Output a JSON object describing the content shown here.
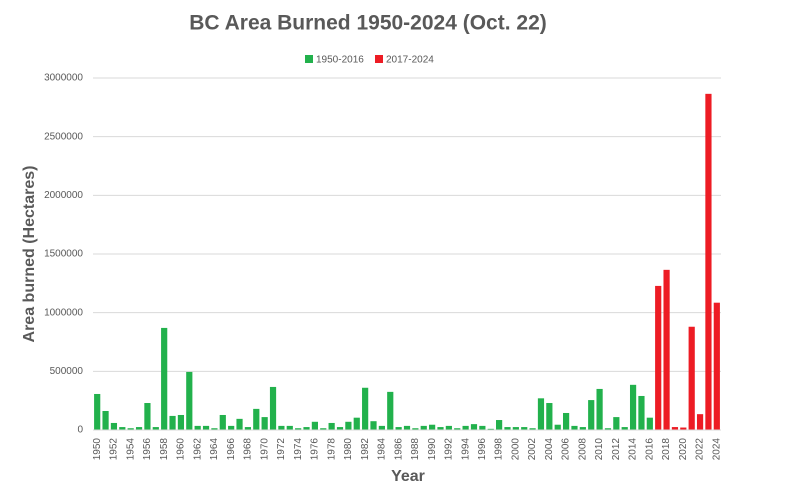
{
  "chart_data": {
    "type": "bar",
    "title": "BC Area Burned 1950-2024 (Oct. 22)",
    "x_label": "Year",
    "y_label": "Area burned (Hectares)",
    "categories": [
      "1950",
      null,
      "1952",
      null,
      "1954",
      null,
      "1956",
      null,
      "1958",
      null,
      "1960",
      null,
      "1962",
      null,
      "1964",
      null,
      "1966",
      null,
      "1968",
      null,
      "1970",
      null,
      "1972",
      null,
      "1974",
      null,
      "1976",
      null,
      "1978",
      null,
      "1980",
      null,
      "1982",
      null,
      "1984",
      null,
      "1986",
      null,
      "1988",
      null,
      "1990",
      null,
      "1992",
      null,
      "1994",
      null,
      "1996",
      null,
      "1998",
      null,
      "2000",
      null,
      "2002",
      null,
      "2004",
      null,
      "2006",
      null,
      "2008",
      null,
      "2010",
      null,
      "2012",
      null,
      "2014",
      null,
      "2016",
      null,
      "2018",
      null,
      "2020",
      null,
      "2022",
      null,
      "2024"
    ],
    "series": [
      {
        "name": "1950-2016",
        "color": "#22b14c",
        "values": [
          307000,
          162000,
          60000,
          25000,
          15000,
          25000,
          230000,
          25000,
          870000,
          120000,
          128000,
          495000,
          35000,
          35000,
          15000,
          128000,
          35000,
          95000,
          25000,
          180000,
          110000,
          367000,
          35000,
          35000,
          15000,
          25000,
          70000,
          15000,
          60000,
          25000,
          70000,
          105000,
          360000,
          75000,
          35000,
          325000,
          25000,
          35000,
          15000,
          35000,
          45000,
          25000,
          35000,
          15000,
          35000,
          50000,
          35000,
          10000,
          85000,
          25000,
          25000,
          25000,
          15000,
          270000,
          230000,
          45000,
          145000,
          35000,
          25000,
          255000,
          350000,
          15000,
          110000,
          25000,
          385000,
          290000,
          105000,
          null,
          null,
          null,
          null,
          null,
          null,
          null,
          null
        ]
      },
      {
        "name": "2017-2024",
        "color": "#ed1c24",
        "values": [
          null,
          null,
          null,
          null,
          null,
          null,
          null,
          null,
          null,
          null,
          null,
          null,
          null,
          null,
          null,
          null,
          null,
          null,
          null,
          null,
          null,
          null,
          null,
          null,
          null,
          null,
          null,
          null,
          null,
          null,
          null,
          null,
          null,
          null,
          null,
          null,
          null,
          null,
          null,
          null,
          null,
          null,
          null,
          null,
          null,
          null,
          null,
          null,
          null,
          null,
          null,
          null,
          null,
          null,
          null,
          null,
          null,
          null,
          null,
          null,
          null,
          null,
          null,
          null,
          null,
          null,
          null,
          1228000,
          1365000,
          25000,
          21000,
          880000,
          135000,
          2865000,
          1085000
        ]
      }
    ],
    "ylim": [
      0,
      3000000
    ],
    "yticks": [
      0,
      500000,
      1000000,
      1500000,
      2000000,
      2500000,
      3000000
    ],
    "grid": true,
    "legend": "top"
  }
}
